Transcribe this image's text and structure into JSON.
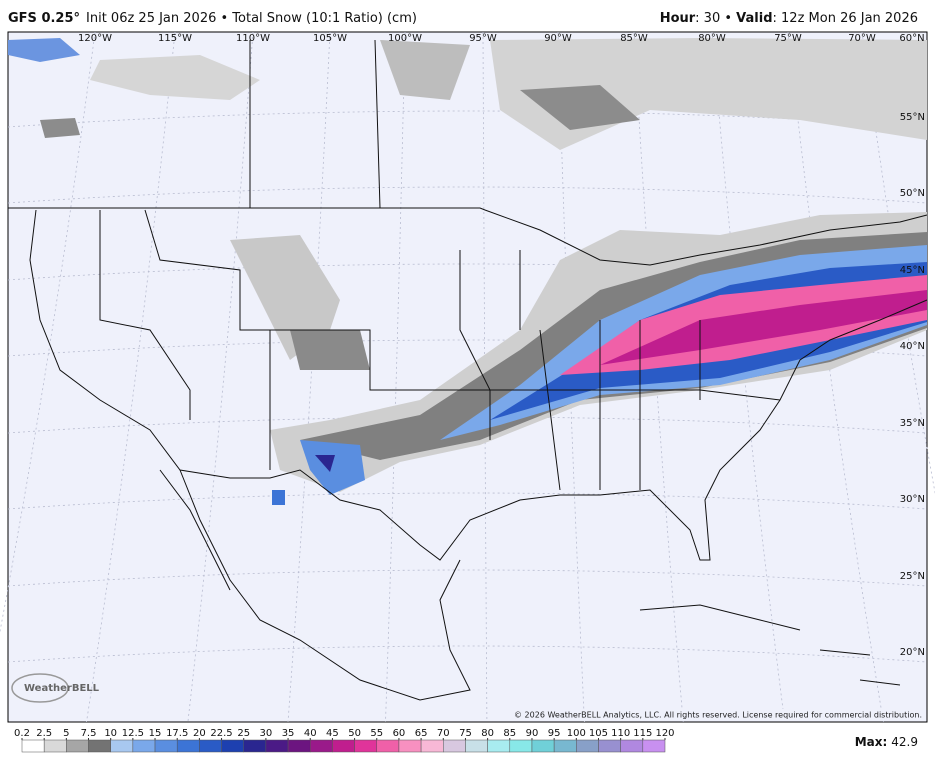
{
  "header": {
    "title": "GFS 0.25°",
    "subtitle": "Init 06z 25 Jan 2026 • Total Snow (10:1 Ratio) (cm)",
    "right": [
      "Hour",
      ": 30 • ",
      "Valid",
      ": 12z Mon 26 Jan 2026"
    ]
  },
  "map": {
    "lon_labels": [
      "120°W",
      "115°W",
      "110°W",
      "105°W",
      "100°W",
      "95°W",
      "90°W",
      "85°W",
      "80°W",
      "75°W",
      "70°W",
      "60°N"
    ],
    "lat_labels": [
      "55°N",
      "50°N",
      "45°N",
      "40°N",
      "35°N",
      "30°N",
      "25°N",
      "20°N"
    ],
    "logo": "WeatherBELL",
    "copyright": "© 2026 WeatherBELL Analytics, LLC. All rights reserved. License required for commercial distribution."
  },
  "legend": {
    "ticks": [
      0.2,
      2.5,
      5,
      7.5,
      10,
      12.5,
      15,
      17.5,
      20,
      22.5,
      25,
      30,
      35,
      40,
      45,
      50,
      55,
      60,
      65,
      70,
      75,
      80,
      85,
      90,
      95,
      100,
      105,
      110,
      115,
      120
    ],
    "colors": [
      "#ffffff",
      "#d9d9d9",
      "#a6a6a6",
      "#737373",
      "#a8c8f0",
      "#7aa8ea",
      "#5a8ee0",
      "#3c74d6",
      "#2a5bc6",
      "#1d40b0",
      "#2a2690",
      "#4b1a86",
      "#6c1580",
      "#9a1a8a",
      "#c01e8e",
      "#e0349a",
      "#f060a8",
      "#f890c0",
      "#f8b8d6",
      "#d8c8e0",
      "#c8e0e8",
      "#a8ecf0",
      "#88e8e8",
      "#70d0d8",
      "#78b8d0",
      "#88a0c8",
      "#9890d0",
      "#b088e0",
      "#c890f0"
    ]
  },
  "max": {
    "label": "Max:",
    "value": 42.9
  }
}
